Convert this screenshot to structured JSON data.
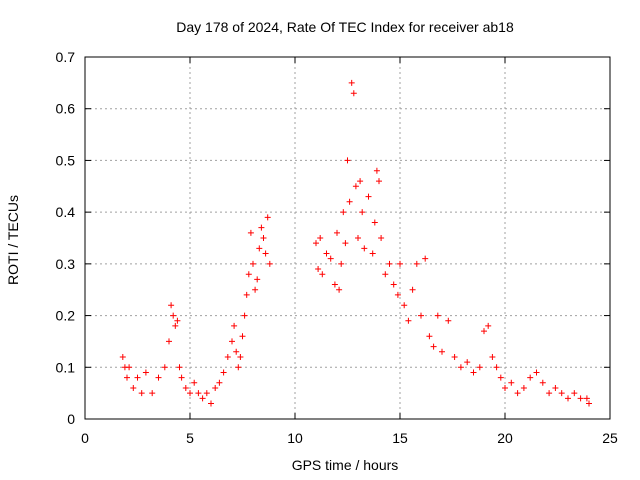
{
  "chart_data": {
    "type": "scatter",
    "title": "Day 178 of 2024, Rate Of TEC Index for receiver ab18",
    "xlabel": "GPS time / hours",
    "ylabel": "ROTI / TECUs",
    "xlim": [
      0,
      25
    ],
    "ylim": [
      0,
      0.7
    ],
    "xticks": [
      0,
      5,
      10,
      15,
      20,
      25
    ],
    "xtick_labels": [
      "0",
      "5",
      "10",
      "15",
      "20",
      "25"
    ],
    "yticks": [
      0,
      0.1,
      0.2,
      0.3,
      0.4,
      0.5,
      0.6,
      0.7
    ],
    "ytick_labels": [
      "0",
      "0.1",
      "0.2",
      "0.3",
      "0.4",
      "0.5",
      "0.6",
      "0.7"
    ],
    "grid": true,
    "marker": "+",
    "color": "#ff0000",
    "data_gap_hours": [
      8.8,
      11.0
    ],
    "series": [
      {
        "name": "ROTI",
        "x": [
          1.8,
          1.9,
          2.0,
          2.1,
          2.3,
          2.5,
          2.7,
          2.9,
          3.2,
          3.5,
          3.8,
          4.0,
          4.1,
          4.2,
          4.3,
          4.4,
          4.5,
          4.6,
          4.8,
          5.0,
          5.2,
          5.4,
          5.6,
          5.8,
          6.0,
          6.2,
          6.4,
          6.6,
          6.8,
          7.0,
          7.1,
          7.2,
          7.3,
          7.4,
          7.5,
          7.6,
          7.7,
          7.8,
          7.9,
          8.0,
          8.1,
          8.2,
          8.3,
          8.4,
          8.5,
          8.6,
          8.7,
          8.8,
          11.0,
          11.1,
          11.2,
          11.3,
          11.5,
          11.7,
          11.9,
          12.0,
          12.1,
          12.2,
          12.3,
          12.4,
          12.5,
          12.6,
          12.7,
          12.8,
          12.9,
          13.0,
          13.1,
          13.2,
          13.3,
          13.5,
          13.7,
          13.8,
          13.9,
          14.0,
          14.1,
          14.3,
          14.5,
          14.7,
          14.9,
          15.0,
          15.2,
          15.4,
          15.6,
          15.8,
          16.0,
          16.2,
          16.4,
          16.6,
          16.8,
          17.0,
          17.3,
          17.6,
          17.9,
          18.2,
          18.5,
          18.8,
          19.0,
          19.2,
          19.4,
          19.6,
          19.8,
          20.0,
          20.3,
          20.6,
          20.9,
          21.2,
          21.5,
          21.8,
          22.1,
          22.4,
          22.7,
          23.0,
          23.3,
          23.6,
          23.9,
          24.0
        ],
        "y": [
          0.12,
          0.1,
          0.08,
          0.1,
          0.06,
          0.08,
          0.05,
          0.09,
          0.05,
          0.08,
          0.1,
          0.15,
          0.22,
          0.2,
          0.18,
          0.19,
          0.1,
          0.08,
          0.06,
          0.05,
          0.07,
          0.05,
          0.04,
          0.05,
          0.03,
          0.06,
          0.07,
          0.09,
          0.12,
          0.15,
          0.18,
          0.13,
          0.1,
          0.12,
          0.16,
          0.2,
          0.24,
          0.28,
          0.36,
          0.3,
          0.25,
          0.27,
          0.33,
          0.37,
          0.35,
          0.32,
          0.39,
          0.3,
          0.34,
          0.29,
          0.35,
          0.28,
          0.32,
          0.31,
          0.26,
          0.36,
          0.25,
          0.3,
          0.4,
          0.34,
          0.5,
          0.42,
          0.65,
          0.63,
          0.45,
          0.35,
          0.46,
          0.4,
          0.33,
          0.43,
          0.32,
          0.38,
          0.48,
          0.46,
          0.35,
          0.28,
          0.3,
          0.26,
          0.24,
          0.3,
          0.22,
          0.19,
          0.25,
          0.3,
          0.2,
          0.31,
          0.16,
          0.14,
          0.2,
          0.13,
          0.19,
          0.12,
          0.1,
          0.11,
          0.09,
          0.1,
          0.17,
          0.18,
          0.12,
          0.1,
          0.08,
          0.06,
          0.07,
          0.05,
          0.06,
          0.08,
          0.09,
          0.07,
          0.05,
          0.06,
          0.05,
          0.04,
          0.05,
          0.04,
          0.04,
          0.03
        ]
      }
    ]
  }
}
